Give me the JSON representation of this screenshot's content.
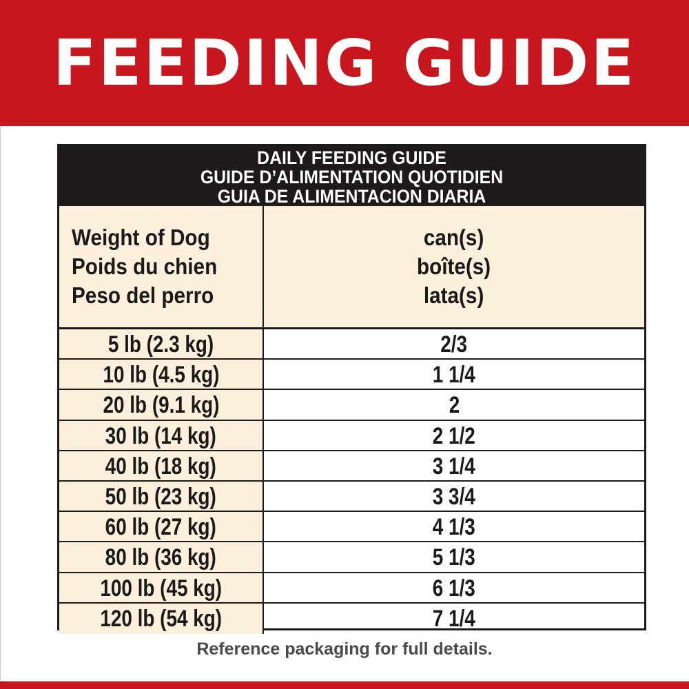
{
  "banner": {
    "title": "FEEDING GUIDE"
  },
  "colors": {
    "brand_red": "#c8161e",
    "header_black": "#1e1a1a",
    "cream": "#fcefdc"
  },
  "table": {
    "title_lines": [
      "DAILY FEEDING GUIDE",
      "GUIDE D’ALIMENTATION QUOTIDIEN",
      "GUIA DE ALIMENTACION DIARIA"
    ],
    "col_weight": [
      "Weight of Dog",
      "Poids du chien",
      "Peso del perro"
    ],
    "col_cans": [
      "can(s)",
      "boîte(s)",
      "lata(s)"
    ],
    "rows": [
      {
        "weight": "5 lb (2.3 kg)",
        "cans": "2/3"
      },
      {
        "weight": "10 lb (4.5 kg)",
        "cans": "1 1/4"
      },
      {
        "weight": "20 lb (9.1 kg)",
        "cans": "2"
      },
      {
        "weight": "30 lb (14 kg)",
        "cans": "2 1/2"
      },
      {
        "weight": "40 lb (18 kg)",
        "cans": "3 1/4"
      },
      {
        "weight": "50 lb (23 kg)",
        "cans": "3 3/4"
      },
      {
        "weight": "60 lb (27 kg)",
        "cans": "4 1/3"
      },
      {
        "weight": "80 lb (36 kg)",
        "cans": "5 1/3"
      },
      {
        "weight": "100 lb (45 kg)",
        "cans": "6 1/3"
      },
      {
        "weight": "120 lb (54 kg)",
        "cans": "7 1/4"
      }
    ]
  },
  "footer": {
    "note": "Reference packaging for full details."
  }
}
